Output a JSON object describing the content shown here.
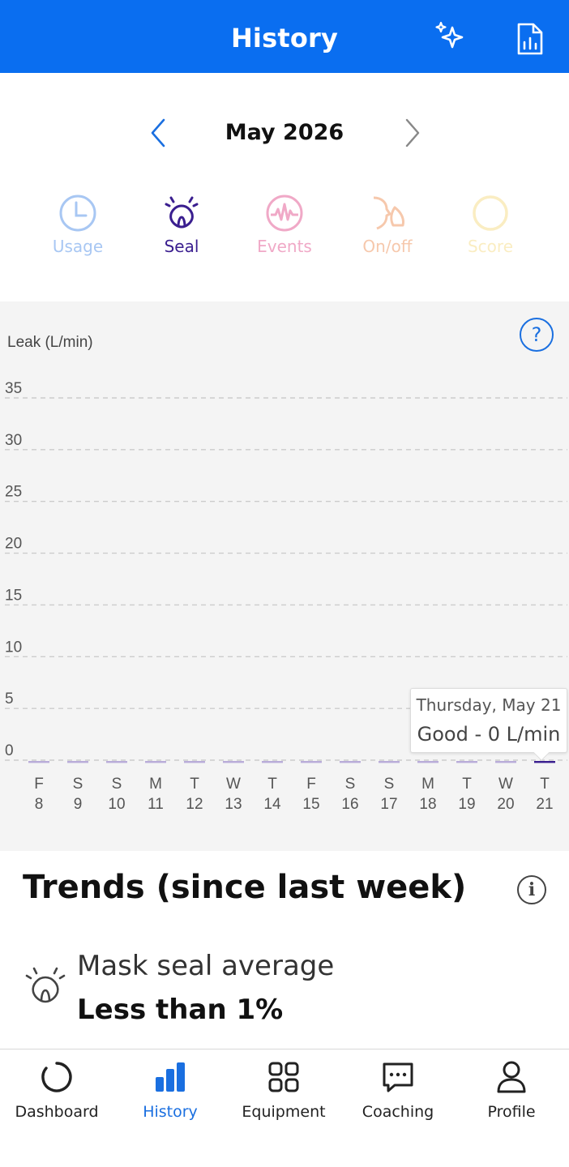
{
  "header": {
    "title": "History",
    "icons": [
      "sparkles-icon",
      "report-icon"
    ]
  },
  "month_nav": {
    "label": "May 2026",
    "prev_icon": "chevron-left-icon",
    "next_icon": "chevron-right-icon"
  },
  "tabs": [
    {
      "label": "Usage",
      "icon": "clock-icon",
      "active": false
    },
    {
      "label": "Seal",
      "icon": "mask-seal-icon",
      "active": true
    },
    {
      "label": "Events",
      "icon": "pulse-icon",
      "active": false
    },
    {
      "label": "On/off",
      "icon": "face-mask-icon",
      "active": false
    },
    {
      "label": "Score",
      "icon": "ring-icon",
      "active": false
    }
  ],
  "chart": {
    "help_icon": "?"
  },
  "chart_data": {
    "type": "bar",
    "ylabel": "Leak (L/min)",
    "ylim": [
      0,
      35
    ],
    "yticks": [
      "35",
      "30",
      "25",
      "20",
      "15",
      "10",
      "5",
      "0"
    ],
    "categories": [
      {
        "day": "F",
        "date": "8"
      },
      {
        "day": "S",
        "date": "9"
      },
      {
        "day": "S",
        "date": "10"
      },
      {
        "day": "M",
        "date": "11"
      },
      {
        "day": "T",
        "date": "12"
      },
      {
        "day": "W",
        "date": "13"
      },
      {
        "day": "T",
        "date": "14"
      },
      {
        "day": "F",
        "date": "15"
      },
      {
        "day": "S",
        "date": "16"
      },
      {
        "day": "S",
        "date": "17"
      },
      {
        "day": "M",
        "date": "18"
      },
      {
        "day": "T",
        "date": "19"
      },
      {
        "day": "W",
        "date": "20"
      },
      {
        "day": "T",
        "date": "21"
      }
    ],
    "values": [
      0,
      0,
      0,
      0,
      0,
      0,
      0,
      0,
      0,
      0,
      0,
      0,
      0,
      0
    ],
    "grid": true,
    "selected_index": 13,
    "tooltip": {
      "date": "Thursday, May 21",
      "value": "Good - 0 L/min"
    },
    "colors": {
      "bar": "#b9acd9",
      "selected_bar": "#3a1e8f",
      "grid": "#cccccc"
    }
  },
  "trends": {
    "title": "Trends (since last week)",
    "info_icon": "i",
    "item_label": "Mask seal average",
    "item_value": "Less than 1%"
  },
  "bottom_nav": [
    {
      "label": "Dashboard",
      "icon": "ring-icon"
    },
    {
      "label": "History",
      "icon": "bar-chart-icon",
      "active": true
    },
    {
      "label": "Equipment",
      "icon": "grid-icon"
    },
    {
      "label": "Coaching",
      "icon": "chat-icon"
    },
    {
      "label": "Profile",
      "icon": "person-icon"
    }
  ],
  "colors": {
    "header": "#0a6ef0",
    "accent": "#1a6fe0"
  }
}
